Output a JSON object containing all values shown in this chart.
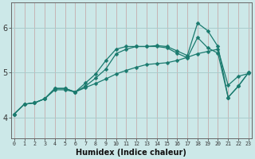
{
  "title": "",
  "xlabel": "Humidex (Indice chaleur)",
  "bg_color": "#cce8e8",
  "line_color": "#1a7a6e",
  "x_ticks": [
    0,
    1,
    2,
    3,
    4,
    5,
    6,
    7,
    8,
    9,
    10,
    11,
    12,
    13,
    14,
    15,
    16,
    17,
    18,
    19,
    20,
    21,
    22,
    23
  ],
  "y_ticks": [
    4,
    5,
    6
  ],
  "xlim": [
    -0.3,
    23.3
  ],
  "ylim": [
    3.55,
    6.55
  ],
  "series1_x": [
    0,
    1,
    2,
    3,
    4,
    5,
    6,
    7,
    8,
    9,
    10,
    11,
    12,
    13,
    14,
    15,
    16,
    17,
    18,
    19,
    20,
    21,
    22,
    23
  ],
  "series1_y": [
    4.08,
    4.3,
    4.33,
    4.42,
    4.62,
    4.62,
    4.57,
    4.67,
    4.76,
    4.86,
    4.97,
    5.05,
    5.12,
    5.18,
    5.2,
    5.22,
    5.27,
    5.34,
    5.42,
    5.47,
    5.52,
    4.72,
    4.92,
    4.98
  ],
  "series2_x": [
    0,
    1,
    2,
    3,
    4,
    5,
    6,
    7,
    8,
    9,
    10,
    11,
    12,
    13,
    14,
    15,
    16,
    17,
    18,
    19,
    20,
    21,
    22,
    23
  ],
  "series2_y": [
    4.08,
    4.3,
    4.33,
    4.42,
    4.65,
    4.65,
    4.57,
    4.7,
    4.88,
    5.08,
    5.42,
    5.52,
    5.58,
    5.58,
    5.58,
    5.55,
    5.43,
    5.33,
    5.78,
    5.55,
    5.43,
    4.45,
    4.7,
    5.0
  ],
  "series3_x": [
    0,
    1,
    2,
    3,
    4,
    5,
    6,
    7,
    8,
    9,
    10,
    11,
    12,
    13,
    14,
    15,
    16,
    17,
    18,
    19,
    20,
    21,
    22,
    23
  ],
  "series3_y": [
    4.08,
    4.3,
    4.33,
    4.42,
    4.65,
    4.65,
    4.57,
    4.77,
    4.97,
    5.27,
    5.52,
    5.58,
    5.58,
    5.58,
    5.6,
    5.58,
    5.48,
    5.38,
    6.1,
    5.93,
    5.58,
    4.45,
    4.7,
    5.0
  ]
}
